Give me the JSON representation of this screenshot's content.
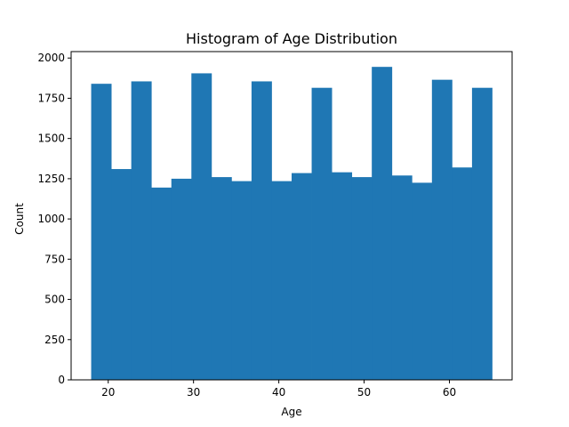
{
  "chart_data": {
    "type": "bar",
    "title": "Histogram of Age Distribution",
    "xlabel": "Age",
    "ylabel": "Count",
    "xlim": [
      15.65,
      67.35
    ],
    "ylim": [
      0,
      2040
    ],
    "xticks": [
      20,
      30,
      40,
      50,
      60
    ],
    "yticks": [
      0,
      250,
      500,
      750,
      1000,
      1250,
      1500,
      1750,
      2000
    ],
    "bins": [
      {
        "start": 18.0,
        "end": 20.35,
        "count": 1840
      },
      {
        "start": 20.35,
        "end": 22.7,
        "count": 1310
      },
      {
        "start": 22.7,
        "end": 25.05,
        "count": 1855
      },
      {
        "start": 25.05,
        "end": 27.4,
        "count": 1195
      },
      {
        "start": 27.4,
        "end": 29.75,
        "count": 1250
      },
      {
        "start": 29.75,
        "end": 32.1,
        "count": 1905
      },
      {
        "start": 32.1,
        "end": 34.45,
        "count": 1260
      },
      {
        "start": 34.45,
        "end": 36.8,
        "count": 1235
      },
      {
        "start": 36.8,
        "end": 39.15,
        "count": 1855
      },
      {
        "start": 39.15,
        "end": 41.5,
        "count": 1235
      },
      {
        "start": 41.5,
        "end": 43.85,
        "count": 1285
      },
      {
        "start": 43.85,
        "end": 46.2,
        "count": 1815
      },
      {
        "start": 46.2,
        "end": 48.55,
        "count": 1290
      },
      {
        "start": 48.55,
        "end": 50.9,
        "count": 1260
      },
      {
        "start": 50.9,
        "end": 53.25,
        "count": 1945
      },
      {
        "start": 53.25,
        "end": 55.6,
        "count": 1270
      },
      {
        "start": 55.6,
        "end": 57.95,
        "count": 1225
      },
      {
        "start": 57.95,
        "end": 60.3,
        "count": 1865
      },
      {
        "start": 60.3,
        "end": 62.65,
        "count": 1320
      },
      {
        "start": 62.65,
        "end": 65.0,
        "count": 1815
      }
    ],
    "bar_color": "#1f77b4",
    "grid": false,
    "legend": "none"
  }
}
